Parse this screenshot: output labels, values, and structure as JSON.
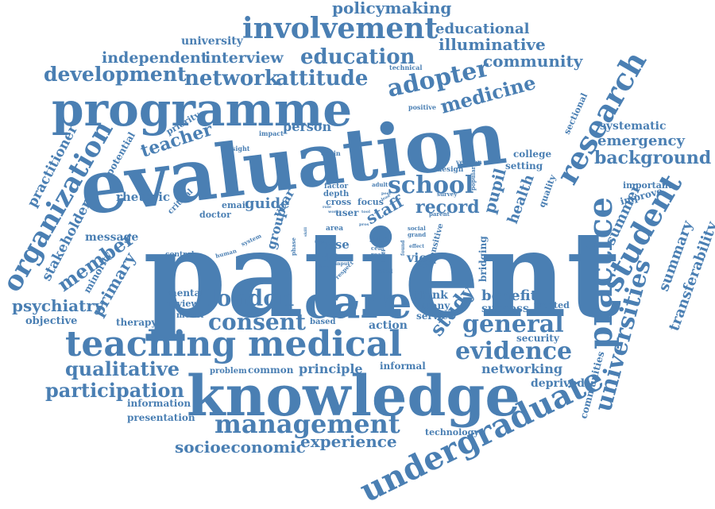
{
  "colors": {
    "word": "#4a7fb3",
    "background": "#ffffff"
  },
  "words": {
    "patient": "patient",
    "evaluation": "evaluation",
    "knowledge": "knowledge",
    "programme": "programme",
    "care": "care",
    "practice": "practice",
    "teaching": "teaching",
    "medical": "medical",
    "research": "research",
    "student": "student",
    "undergraduate": "undergraduate",
    "involvement": "involvement",
    "organization": "organization",
    "universities": "universities",
    "management": "management",
    "school": "school",
    "evidence": "evidence",
    "general": "general",
    "london": "london",
    "consent": "consent",
    "adopter": "adopter",
    "education": "education",
    "network": "network",
    "attitude": "attitude",
    "development": "development",
    "medicine": "medicine",
    "qualitative": "qualitative",
    "participation": "participation",
    "member": "member",
    "study": "study",
    "primary": "primary",
    "teacher": "teacher",
    "background": "background",
    "emergency": "emergency",
    "community": "community",
    "illuminative": "illuminative",
    "educational": "educational",
    "policymaking": "policymaking",
    "independent": "independent",
    "interview": "interview",
    "university": "university",
    "practitioner": "practitioner",
    "psychiatry": "psychiatry",
    "stakeholder": "stakeholder",
    "socioeconomic": "socioeconomic",
    "experience": "experience",
    "transferability": "transferability",
    "summary": "summary",
    "summer": "summer",
    "pupil": "pupil",
    "health": "health",
    "record": "record",
    "staff": "staff",
    "benefit": "benefit",
    "success": "success",
    "principle": "principle",
    "networking": "networking",
    "view": "view",
    "guide": "guide",
    "person": "person",
    "year": "year",
    "group": "group",
    "presentation": "presentation",
    "information": "information",
    "deprived": "deprived",
    "systematic": "systematic",
    "improve": "improve",
    "important": "important",
    "sectional": "sectional",
    "technology": "technology",
    "communities": "communities",
    "rhetoric": "rhetoric",
    "potential": "potential",
    "priority": "priority",
    "message": "message",
    "minority": "minority",
    "objective": "objective",
    "therapy": "therapy",
    "mental": "mental",
    "review": "review",
    "model": "model",
    "action": "action",
    "think": "think",
    "many": "many",
    "service": "service",
    "common": "common",
    "problem": "problem",
    "informal": "informal",
    "security": "security",
    "treated": "treated",
    "bridging": "bridging",
    "sensitive": "sensitive",
    "setting": "setting",
    "college": "college",
    "quality": "quality",
    "critical": "critical",
    "doctor": "doctor",
    "email": "email",
    "case": "case",
    "data": "data",
    "site": "site",
    "focus": "focus",
    "cross": "cross",
    "depth": "depth",
    "factor": "factor",
    "user": "user",
    "area": "area",
    "based": "based",
    "control": "control",
    "human": "human",
    "system": "system",
    "phase": "phase",
    "impact": "impact",
    "insight": "insight",
    "chain": "chain",
    "design": "design",
    "version": "version",
    "positive": "positive",
    "technical": "technical",
    "popular": "popular",
    "survey": "survey",
    "adult": "adult",
    "parent": "parent",
    "social": "social",
    "grand": "grand",
    "cent": "cent",
    "real": "real",
    "other": "other",
    "detail": "detail",
    "respect": "respect",
    "input": "input",
    "know": "know",
    "level": "level",
    "found": "found",
    "effect": "effect",
    "work": "work",
    "role": "role",
    "skill": "skill",
    "type": "type",
    "tool": "tool",
    "lead": "lead",
    "peer": "peer",
    "pros": "pros"
  }
}
